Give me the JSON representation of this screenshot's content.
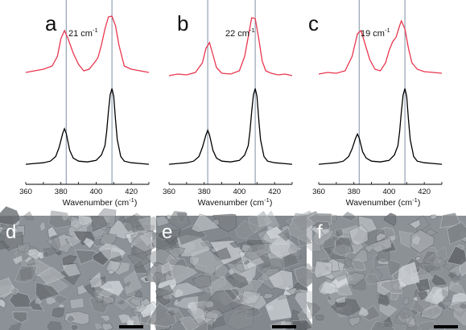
{
  "chart_data": [
    {
      "type": "line",
      "panel": "a",
      "separation_label": "21 cm",
      "separation_superscript": "-1",
      "xlabel": "Wavenumber (cm",
      "xlabel_superscript": "-1",
      "xlabel_tail": ")",
      "xlim": [
        360,
        430
      ],
      "x_ticks": [
        360,
        380,
        400,
        420
      ],
      "reference_lines_x": [
        383,
        409
      ],
      "colors": {
        "upper": "#e8364f",
        "lower": "#000000",
        "reference": "#7f8fa3"
      },
      "series": [
        {
          "x": [
            360,
            365,
            370,
            375,
            378,
            380,
            382,
            384,
            387,
            390,
            393,
            396,
            399,
            401,
            403,
            405,
            407,
            409,
            411,
            413,
            416,
            420,
            425,
            430
          ],
          "y": [
            0.28,
            0.3,
            0.32,
            0.36,
            0.48,
            0.7,
            0.8,
            0.7,
            0.52,
            0.38,
            0.3,
            0.32,
            0.4,
            0.46,
            0.62,
            0.82,
            0.97,
            0.98,
            0.86,
            0.62,
            0.36,
            0.32,
            0.3,
            0.28
          ]
        },
        {
          "x": [
            360,
            365,
            370,
            374,
            377,
            379,
            381,
            382,
            383,
            385,
            387,
            390,
            395,
            400,
            403,
            405,
            406,
            407,
            408,
            409,
            410,
            411,
            412,
            414,
            416,
            420,
            425,
            430
          ],
          "y": [
            0.02,
            0.03,
            0.04,
            0.06,
            0.12,
            0.24,
            0.42,
            0.48,
            0.42,
            0.2,
            0.1,
            0.06,
            0.05,
            0.07,
            0.14,
            0.26,
            0.44,
            0.7,
            0.92,
            1.0,
            0.9,
            0.6,
            0.34,
            0.12,
            0.06,
            0.04,
            0.03,
            0.02
          ]
        }
      ]
    },
    {
      "type": "line",
      "panel": "b",
      "separation_label": "22 cm",
      "separation_superscript": "-1",
      "xlabel": "Wavenumber (cm",
      "xlabel_superscript": "-1",
      "xlabel_tail": ")",
      "xlim": [
        360,
        430
      ],
      "x_ticks": [
        360,
        380,
        400,
        420
      ],
      "reference_lines_x": [
        382,
        409
      ],
      "colors": {
        "upper": "#e8364f",
        "lower": "#000000",
        "reference": "#7f8fa3"
      },
      "series": [
        {
          "x": [
            360,
            365,
            370,
            375,
            379,
            381,
            383,
            385,
            387,
            390,
            395,
            400,
            403,
            405,
            407,
            409,
            411,
            413,
            415,
            418,
            422,
            426,
            430
          ],
          "y": [
            0.24,
            0.26,
            0.25,
            0.28,
            0.4,
            0.58,
            0.65,
            0.5,
            0.34,
            0.27,
            0.26,
            0.3,
            0.48,
            0.72,
            0.96,
            0.95,
            0.7,
            0.42,
            0.3,
            0.27,
            0.25,
            0.26,
            0.24
          ]
        },
        {
          "x": [
            360,
            365,
            370,
            374,
            377,
            379,
            381,
            382,
            383,
            385,
            387,
            390,
            395,
            400,
            403,
            405,
            406,
            407,
            408,
            409,
            410,
            411,
            412,
            414,
            416,
            420,
            425,
            430
          ],
          "y": [
            0.02,
            0.03,
            0.04,
            0.06,
            0.12,
            0.24,
            0.4,
            0.46,
            0.4,
            0.2,
            0.1,
            0.06,
            0.05,
            0.07,
            0.14,
            0.26,
            0.44,
            0.7,
            0.92,
            1.0,
            0.9,
            0.6,
            0.34,
            0.12,
            0.06,
            0.04,
            0.03,
            0.02
          ]
        }
      ]
    },
    {
      "type": "line",
      "panel": "c",
      "separation_label": "19 cm",
      "separation_superscript": "-1",
      "xlabel": "Wavenumber (cm",
      "xlabel_superscript": "-1",
      "xlabel_tail": ")",
      "xlim": [
        360,
        430
      ],
      "x_ticks": [
        360,
        380,
        400,
        420
      ],
      "reference_lines_x": [
        383,
        409
      ],
      "colors": {
        "upper": "#e8364f",
        "lower": "#000000",
        "reference": "#7f8fa3"
      },
      "series": [
        {
          "x": [
            360,
            365,
            370,
            375,
            379,
            382,
            384,
            386,
            389,
            392,
            395,
            398,
            400,
            402,
            404,
            406,
            407,
            409,
            411,
            413,
            416,
            420,
            425,
            430
          ],
          "y": [
            0.26,
            0.28,
            0.27,
            0.3,
            0.48,
            0.76,
            0.8,
            0.66,
            0.44,
            0.32,
            0.3,
            0.4,
            0.55,
            0.66,
            0.72,
            0.86,
            0.92,
            0.82,
            0.58,
            0.4,
            0.32,
            0.29,
            0.28,
            0.27
          ]
        },
        {
          "x": [
            360,
            365,
            370,
            374,
            377,
            379,
            381,
            382,
            383,
            385,
            387,
            390,
            395,
            400,
            403,
            405,
            406,
            407,
            408,
            409,
            410,
            411,
            412,
            414,
            416,
            420,
            425,
            430
          ],
          "y": [
            0.02,
            0.03,
            0.04,
            0.06,
            0.12,
            0.22,
            0.36,
            0.41,
            0.36,
            0.18,
            0.1,
            0.06,
            0.05,
            0.07,
            0.14,
            0.26,
            0.44,
            0.7,
            0.92,
            1.0,
            0.9,
            0.6,
            0.34,
            0.12,
            0.06,
            0.04,
            0.03,
            0.02
          ]
        }
      ]
    }
  ],
  "sem_panels": [
    {
      "letter": "d",
      "base": "#8b9196",
      "scale_bar_color": "#000000"
    },
    {
      "letter": "e",
      "base": "#82888d",
      "scale_bar_color": "#000000"
    },
    {
      "letter": "f",
      "base": "#8c9196",
      "scale_bar_color": "#000000"
    }
  ]
}
